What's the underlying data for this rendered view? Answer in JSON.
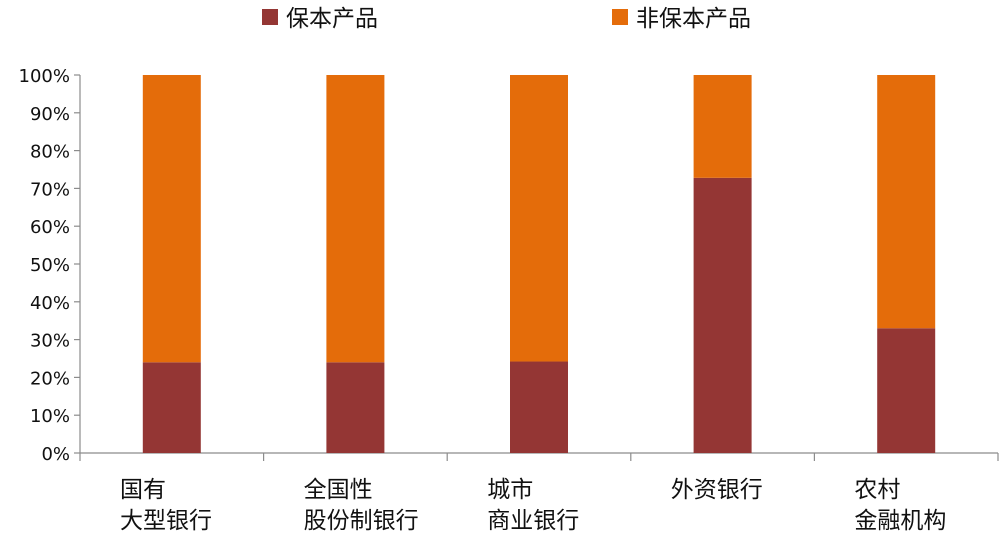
{
  "chart_data": {
    "type": "bar",
    "stacked": true,
    "categories": [
      [
        "国有",
        "大型银行"
      ],
      [
        "全国性",
        "股份制银行"
      ],
      [
        "城市",
        "商业银行"
      ],
      [
        "外资银行"
      ],
      [
        "农村",
        "金融机构"
      ]
    ],
    "series": [
      {
        "name": "保本产品",
        "color": "#943634",
        "values": [
          24,
          24,
          24.2,
          72.8,
          33
        ]
      },
      {
        "name": "非保本产品",
        "color": "#E46C0A",
        "values": [
          76,
          76,
          75.8,
          27.2,
          67
        ]
      }
    ],
    "ylim": [
      0,
      100
    ],
    "yticks": [
      "0%",
      "10%",
      "20%",
      "30%",
      "40%",
      "50%",
      "60%",
      "70%",
      "80%",
      "90%",
      "100%"
    ],
    "title": "",
    "xlabel": "",
    "ylabel": "",
    "grid": false,
    "legend_position": "top"
  }
}
